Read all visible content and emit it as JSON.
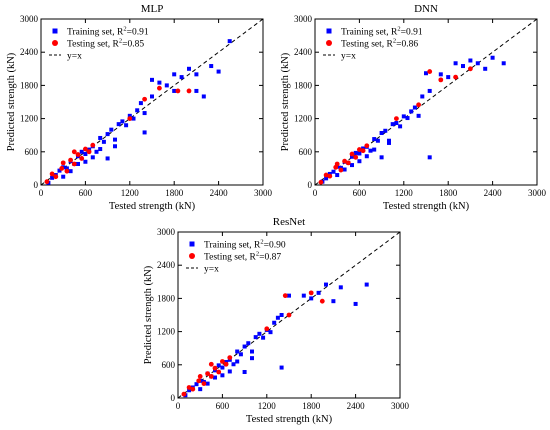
{
  "chart_data": [
    {
      "type": "scatter",
      "title": "MLP",
      "xlabel": "Tested strength (kN)",
      "ylabel": "Predicted strength (kN)",
      "xlim": [
        0,
        3000
      ],
      "ylim": [
        0,
        3000
      ],
      "xticks": [
        "0",
        "600",
        "1200",
        "1800",
        "2400",
        "3000"
      ],
      "yticks": [
        "0",
        "600",
        "1200",
        "1800",
        "2400",
        "3000"
      ],
      "legend_position": "top-left",
      "legend": {
        "train_prefix": "Training set, R",
        "train_r2": "=0.91",
        "test_prefix": "Testing set, R",
        "test_r2": "=0.85",
        "exp": "2",
        "line": "y=x"
      },
      "series": [
        {
          "name": "Training set, R2=0.91",
          "marker": "square",
          "color": "#0000ff",
          "points": [
            [
              100,
              40
            ],
            [
              150,
              130
            ],
            [
              200,
              180
            ],
            [
              250,
              260
            ],
            [
              300,
              320
            ],
            [
              350,
              300
            ],
            [
              400,
              430
            ],
            [
              450,
              380
            ],
            [
              500,
              520
            ],
            [
              550,
              600
            ],
            [
              600,
              560
            ],
            [
              650,
              640
            ],
            [
              700,
              700
            ],
            [
              750,
              600
            ],
            [
              800,
              850
            ],
            [
              850,
              780
            ],
            [
              900,
              920
            ],
            [
              950,
              1000
            ],
            [
              1000,
              700
            ],
            [
              1050,
              1100
            ],
            [
              1100,
              1150
            ],
            [
              1150,
              1080
            ],
            [
              1200,
              1250
            ],
            [
              1250,
              1200
            ],
            [
              1300,
              1350
            ],
            [
              1350,
              1480
            ],
            [
              1400,
              1300
            ],
            [
              1500,
              1600
            ],
            [
              1600,
              1850
            ],
            [
              1700,
              1800
            ],
            [
              1800,
              1700
            ],
            [
              1900,
              1950
            ],
            [
              2000,
              2100
            ],
            [
              2100,
              2000
            ],
            [
              2200,
              1600
            ],
            [
              2300,
              2150
            ],
            [
              2400,
              2050
            ],
            [
              2550,
              2600
            ],
            [
              300,
              150
            ],
            [
              400,
              250
            ],
            [
              500,
              380
            ],
            [
              600,
              420
            ],
            [
              700,
              500
            ],
            [
              800,
              650
            ],
            [
              900,
              480
            ],
            [
              1000,
              820
            ],
            [
              1400,
              950
            ],
            [
              1500,
              1900
            ],
            [
              1800,
              2000
            ],
            [
              2100,
              1700
            ]
          ]
        },
        {
          "name": "Testing set, R2=0.85",
          "marker": "circle",
          "color": "#ff0000",
          "points": [
            [
              80,
              60
            ],
            [
              150,
              200
            ],
            [
              200,
              150
            ],
            [
              280,
              300
            ],
            [
              350,
              250
            ],
            [
              400,
              450
            ],
            [
              450,
              380
            ],
            [
              500,
              550
            ],
            [
              550,
              480
            ],
            [
              600,
              650
            ],
            [
              650,
              600
            ],
            [
              700,
              720
            ],
            [
              300,
              400
            ],
            [
              450,
              600
            ],
            [
              1200,
              1200
            ],
            [
              1400,
              1550
            ],
            [
              1600,
              1750
            ],
            [
              1850,
              1700
            ],
            [
              2000,
              1700
            ]
          ]
        }
      ]
    },
    {
      "type": "scatter",
      "title": "DNN",
      "xlabel": "Tested strength (kN)",
      "ylabel": "Predicted strength (kN)",
      "xlim": [
        0,
        3000
      ],
      "ylim": [
        0,
        3000
      ],
      "xticks": [
        "0",
        "600",
        "1200",
        "1800",
        "2400",
        "3000"
      ],
      "yticks": [
        "0",
        "600",
        "1200",
        "1800",
        "2400",
        "3000"
      ],
      "legend_position": "top-left",
      "legend": {
        "train_prefix": "Training set, R",
        "train_r2": "=0.91",
        "test_prefix": "Testing set, R",
        "test_r2": "=0.86",
        "exp": "2",
        "line": "y=x"
      },
      "series": [
        {
          "name": "Training set, R2=0.91",
          "marker": "square",
          "color": "#0000ff",
          "points": [
            [
              100,
              60
            ],
            [
              150,
              120
            ],
            [
              200,
              200
            ],
            [
              250,
              240
            ],
            [
              300,
              330
            ],
            [
              350,
              310
            ],
            [
              400,
              420
            ],
            [
              450,
              400
            ],
            [
              500,
              510
            ],
            [
              550,
              580
            ],
            [
              600,
              570
            ],
            [
              650,
              660
            ],
            [
              700,
              690
            ],
            [
              750,
              620
            ],
            [
              800,
              830
            ],
            [
              850,
              800
            ],
            [
              900,
              940
            ],
            [
              950,
              980
            ],
            [
              1000,
              760
            ],
            [
              1050,
              1100
            ],
            [
              1100,
              1120
            ],
            [
              1150,
              1060
            ],
            [
              1200,
              1240
            ],
            [
              1250,
              1210
            ],
            [
              1300,
              1330
            ],
            [
              1350,
              1400
            ],
            [
              1400,
              1250
            ],
            [
              1500,
              2020
            ],
            [
              1550,
              500
            ],
            [
              1700,
              2000
            ],
            [
              1800,
              1950
            ],
            [
              1900,
              2200
            ],
            [
              2000,
              2150
            ],
            [
              2100,
              2250
            ],
            [
              2200,
              2200
            ],
            [
              2300,
              2100
            ],
            [
              2400,
              2300
            ],
            [
              2550,
              2200
            ],
            [
              300,
              180
            ],
            [
              400,
              280
            ],
            [
              500,
              360
            ],
            [
              600,
              430
            ],
            [
              700,
              520
            ],
            [
              800,
              640
            ],
            [
              900,
              500
            ],
            [
              1000,
              800
            ],
            [
              1450,
              1600
            ],
            [
              1550,
              1700
            ]
          ]
        },
        {
          "name": "Testing set, R2=0.86",
          "marker": "circle",
          "color": "#ff0000",
          "points": [
            [
              80,
              50
            ],
            [
              150,
              180
            ],
            [
              200,
              160
            ],
            [
              280,
              320
            ],
            [
              350,
              270
            ],
            [
              400,
              430
            ],
            [
              450,
              400
            ],
            [
              500,
              560
            ],
            [
              550,
              500
            ],
            [
              600,
              640
            ],
            [
              650,
              620
            ],
            [
              700,
              710
            ],
            [
              300,
              380
            ],
            [
              1100,
              1200
            ],
            [
              1400,
              1450
            ],
            [
              1550,
              2050
            ],
            [
              1700,
              1900
            ],
            [
              1900,
              1950
            ],
            [
              2100,
              2100
            ]
          ]
        }
      ]
    },
    {
      "type": "scatter",
      "title": "ResNet",
      "xlabel": "Tested strength (kN)",
      "ylabel": "Predicted strength (kN)",
      "xlim": [
        0,
        3000
      ],
      "ylim": [
        0,
        3000
      ],
      "xticks": [
        "0",
        "600",
        "1200",
        "1800",
        "2400",
        "3000"
      ],
      "yticks": [
        "0",
        "600",
        "1200",
        "1800",
        "2400",
        "3000"
      ],
      "legend_position": "top-left",
      "legend": {
        "train_prefix": "Training set, R",
        "train_r2": "=0.90",
        "test_prefix": "Testing set, R",
        "test_r2": "=0.87",
        "exp": "2",
        "line": "y=x"
      },
      "series": [
        {
          "name": "Training set, R2=0.90",
          "marker": "square",
          "color": "#0000ff",
          "points": [
            [
              100,
              50
            ],
            [
              150,
              140
            ],
            [
              200,
              190
            ],
            [
              250,
              250
            ],
            [
              300,
              310
            ],
            [
              350,
              290
            ],
            [
              400,
              440
            ],
            [
              450,
              390
            ],
            [
              500,
              500
            ],
            [
              550,
              590
            ],
            [
              600,
              550
            ],
            [
              650,
              650
            ],
            [
              700,
              690
            ],
            [
              750,
              610
            ],
            [
              800,
              840
            ],
            [
              850,
              790
            ],
            [
              900,
              930
            ],
            [
              950,
              990
            ],
            [
              1000,
              720
            ],
            [
              1050,
              1100
            ],
            [
              1100,
              1160
            ],
            [
              1150,
              1090
            ],
            [
              1200,
              1230
            ],
            [
              1250,
              1190
            ],
            [
              1300,
              1360
            ],
            [
              1350,
              1450
            ],
            [
              1400,
              550
            ],
            [
              1500,
              1850
            ],
            [
              1700,
              1850
            ],
            [
              1800,
              1800
            ],
            [
              1900,
              1900
            ],
            [
              2000,
              2050
            ],
            [
              2100,
              1750
            ],
            [
              2200,
              2000
            ],
            [
              2400,
              1700
            ],
            [
              2550,
              2050
            ],
            [
              300,
              160
            ],
            [
              400,
              260
            ],
            [
              500,
              370
            ],
            [
              600,
              410
            ],
            [
              700,
              480
            ],
            [
              800,
              660
            ],
            [
              900,
              470
            ],
            [
              1000,
              840
            ],
            [
              1400,
              1500
            ]
          ]
        },
        {
          "name": "Testing set, R2=0.87",
          "marker": "circle",
          "color": "#ff0000",
          "points": [
            [
              80,
              70
            ],
            [
              150,
              190
            ],
            [
              200,
              160
            ],
            [
              280,
              310
            ],
            [
              350,
              260
            ],
            [
              400,
              440
            ],
            [
              450,
              390
            ],
            [
              500,
              540
            ],
            [
              550,
              470
            ],
            [
              600,
              660
            ],
            [
              650,
              610
            ],
            [
              700,
              730
            ],
            [
              300,
              390
            ],
            [
              450,
              610
            ],
            [
              1200,
              1250
            ],
            [
              1450,
              1850
            ],
            [
              1500,
              1500
            ],
            [
              1800,
              1900
            ],
            [
              1950,
              1750
            ]
          ]
        }
      ]
    }
  ]
}
